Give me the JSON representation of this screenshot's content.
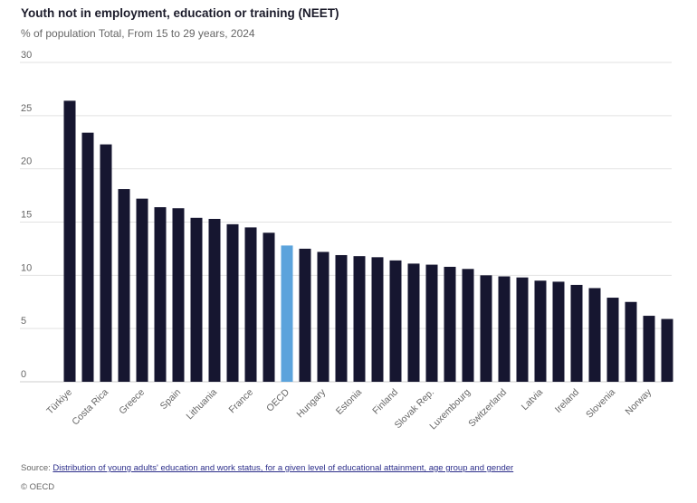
{
  "chart_data": {
    "type": "bar",
    "title": "Youth not in employment, education or training (NEET)",
    "subtitle": "% of population Total, From 15 to 29 years, 2024",
    "ylim": [
      0,
      30
    ],
    "yticks": [
      0,
      5,
      10,
      15,
      20,
      25,
      30
    ],
    "grid": true,
    "categories": [
      "Türkiye",
      "",
      "Costa Rica",
      "",
      "Greece",
      "",
      "Spain",
      "",
      "Lithuania",
      "",
      "France",
      "",
      "OECD",
      "",
      "Hungary",
      "",
      "Estonia",
      "",
      "Finland",
      "",
      "Slovak Rep.",
      "",
      "Luxembourg",
      "",
      "Switzerland",
      "",
      "Latvia",
      "",
      "Ireland",
      "",
      "Slovenia",
      "",
      "Norway",
      ""
    ],
    "values": [
      26.4,
      23.4,
      22.3,
      18.1,
      17.2,
      16.4,
      16.3,
      15.4,
      15.3,
      14.8,
      14.5,
      14.0,
      12.8,
      12.5,
      12.2,
      11.9,
      11.8,
      11.7,
      11.4,
      11.1,
      11.0,
      10.8,
      10.6,
      10.0,
      9.9,
      9.8,
      9.5,
      9.4,
      9.1,
      8.8,
      7.9,
      7.5,
      6.2,
      5.9
    ],
    "highlight": "OECD",
    "colors": {
      "bar": "#161630",
      "highlight": "#5ba3dc",
      "grid": "#e2e2e2"
    }
  },
  "footer": {
    "source_label": "Source:",
    "source_link": "Distribution of young adults' education and work status, for a given level of educational attainment, age group and gender",
    "copyright": "© OECD"
  }
}
